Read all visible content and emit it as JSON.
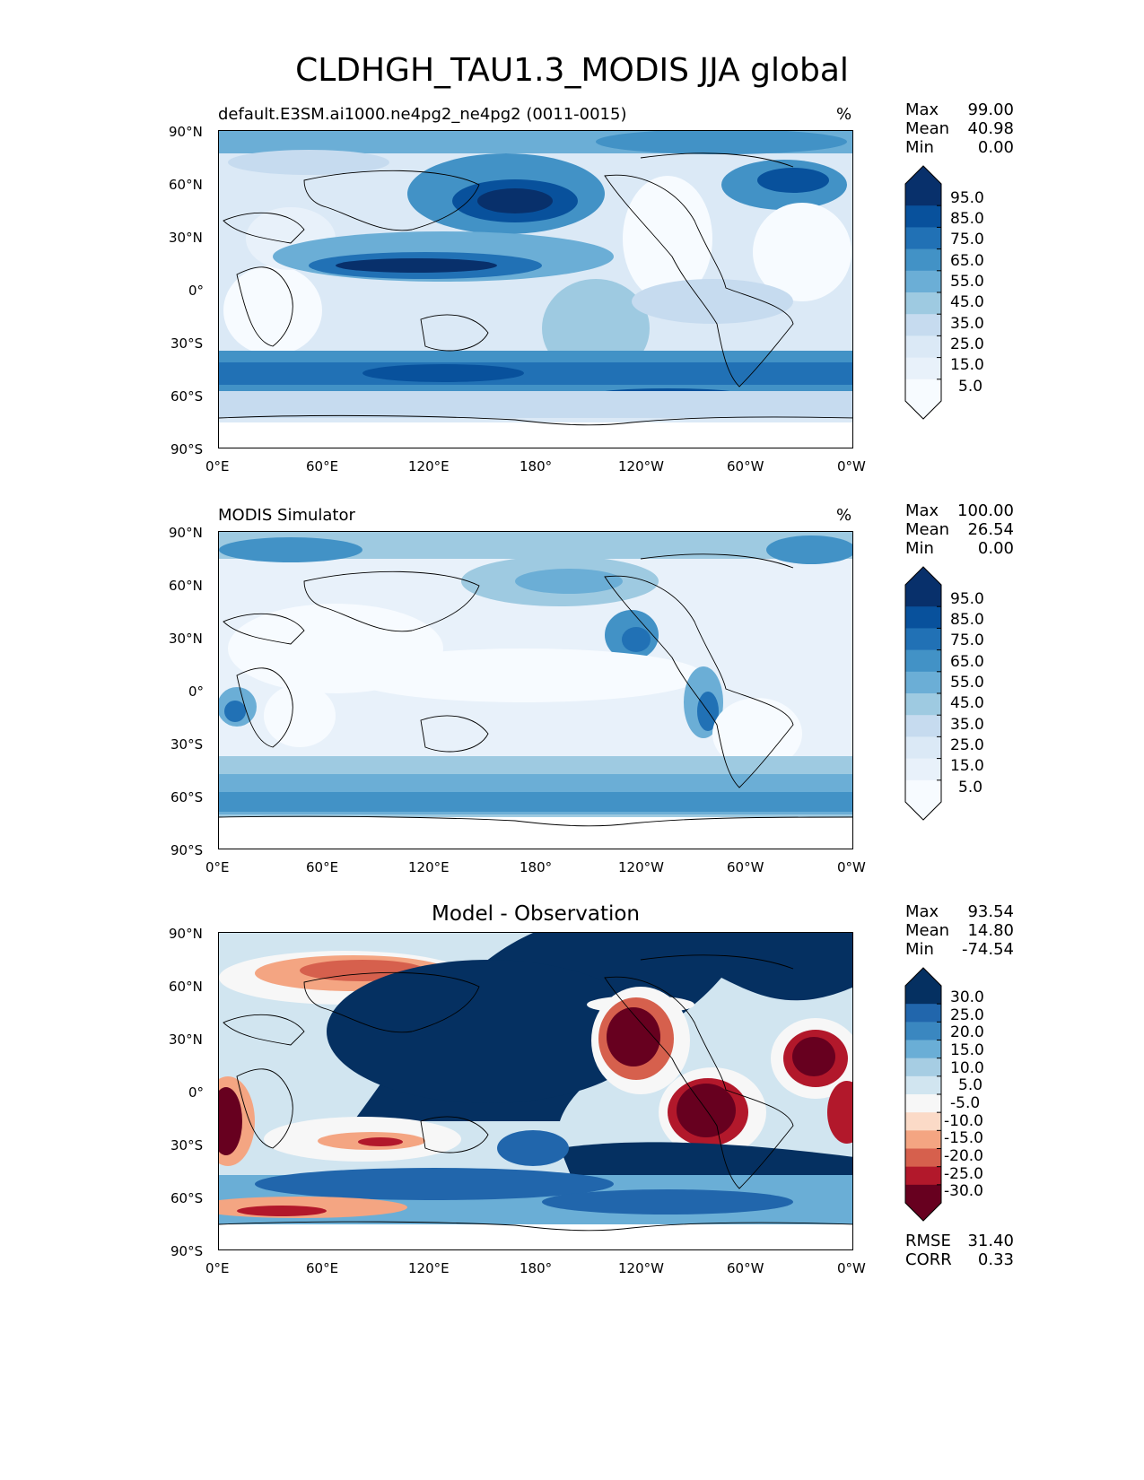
{
  "figure": {
    "title": "CLDHGH_TAU1.3_MODIS JJA global"
  },
  "lat_labels": [
    "90°N",
    "60°N",
    "30°N",
    "0°",
    "30°S",
    "60°S",
    "90°S"
  ],
  "lon_labels": [
    "0°E",
    "60°E",
    "120°E",
    "180°",
    "120°W",
    "60°W",
    "0°W"
  ],
  "panels": [
    {
      "id": "test",
      "title": "default.E3SM.ai1000.ne4pg2_ne4pg2 (0011-0015)",
      "units": "%",
      "stats": {
        "max_label": "Max",
        "max": "99.00",
        "mean_label": "Mean",
        "mean": "40.98",
        "min_label": "Min",
        "min": "0.00"
      },
      "colorbar": {
        "labels": [
          "95.0",
          "85.0",
          "75.0",
          "65.0",
          "55.0",
          "45.0",
          "35.0",
          "25.0",
          "15.0",
          "5.0"
        ],
        "colors": [
          "#08306b",
          "#08519c",
          "#2171b5",
          "#4292c6",
          "#6baed6",
          "#9ecae1",
          "#c6dbef",
          "#dbe9f6",
          "#e8f1fa",
          "#f7fbff"
        ]
      }
    },
    {
      "id": "reference",
      "title": "MODIS Simulator",
      "units": "%",
      "stats": {
        "max_label": "Max",
        "max": "100.00",
        "mean_label": "Mean",
        "mean": "26.54",
        "min_label": "Min",
        "min": "0.00"
      },
      "colorbar": {
        "labels": [
          "95.0",
          "85.0",
          "75.0",
          "65.0",
          "55.0",
          "45.0",
          "35.0",
          "25.0",
          "15.0",
          "5.0"
        ],
        "colors": [
          "#08306b",
          "#08519c",
          "#2171b5",
          "#4292c6",
          "#6baed6",
          "#9ecae1",
          "#c6dbef",
          "#dbe9f6",
          "#e8f1fa",
          "#f7fbff"
        ]
      }
    },
    {
      "id": "difference",
      "title": "Model - Observation",
      "units": "",
      "stats": {
        "max_label": "Max",
        "max": "93.54",
        "mean_label": "Mean",
        "mean": "14.80",
        "min_label": "Min",
        "min": "-74.54"
      },
      "extra_stats": {
        "rmse_label": "RMSE",
        "rmse": "31.40",
        "corr_label": "CORR",
        "corr": "0.33"
      },
      "colorbar": {
        "labels": [
          "30.0",
          "25.0",
          "20.0",
          "15.0",
          "10.0",
          "5.0",
          "-5.0",
          "-10.0",
          "-15.0",
          "-20.0",
          "-25.0",
          "-30.0"
        ],
        "colors": [
          "#053061",
          "#2166ac",
          "#3a87c0",
          "#6aaed6",
          "#a6cde3",
          "#d1e5f0",
          "#f7f7f7",
          "#fbdac7",
          "#f4a582",
          "#d6604d",
          "#b2182b",
          "#67001f"
        ]
      }
    }
  ]
}
